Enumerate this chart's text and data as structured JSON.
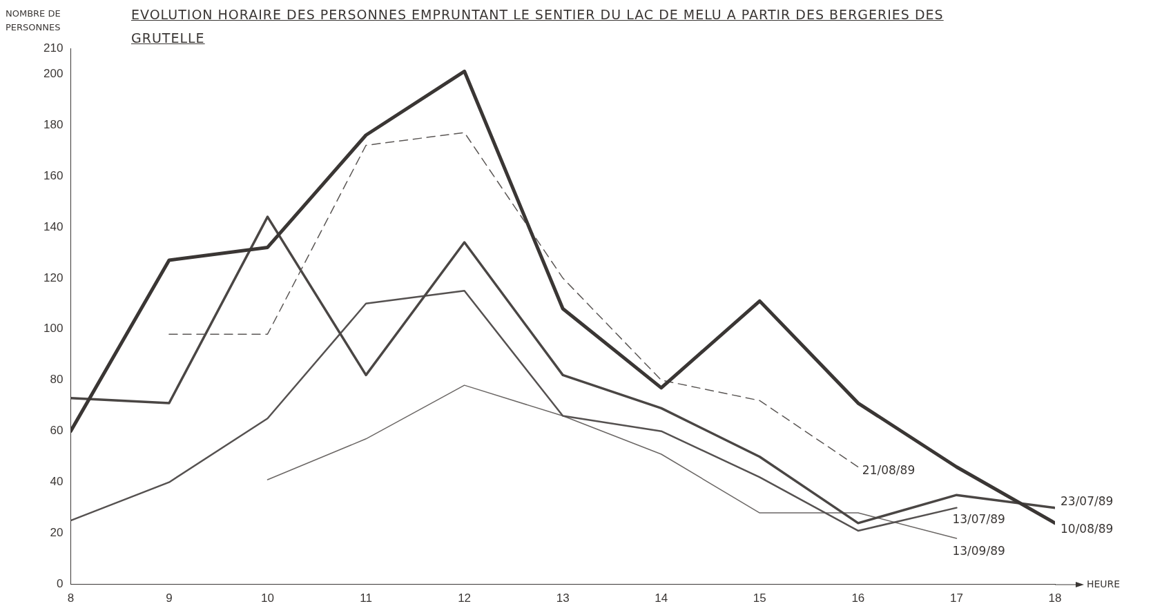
{
  "chart_data": {
    "type": "line",
    "title": "EVOLUTION HORAIRE DES PERSONNES EMPRUNTANT LE SENTIER DU LAC DE MELU A PARTIR DES BERGERIES DES GRUTELLE",
    "xlabel": "HEURE",
    "ylabel": "NOMBRE DE PERSONNES",
    "xlim": [
      8,
      18
    ],
    "xticks": [
      8,
      9,
      10,
      11,
      12,
      13,
      14,
      15,
      16,
      17,
      18
    ],
    "ylim": [
      0,
      210
    ],
    "yticks": [
      0,
      20,
      40,
      60,
      80,
      100,
      120,
      140,
      160,
      180,
      200,
      210
    ],
    "grid": false,
    "legend": false,
    "marker": "none",
    "series": [
      {
        "name": "10/08/89",
        "color": "#3a3634",
        "x": [
          8,
          9,
          10,
          11,
          12,
          13,
          14,
          15,
          16,
          17,
          18
        ],
        "values": [
          60,
          127,
          132,
          176,
          201,
          108,
          77,
          111,
          71,
          46,
          24
        ]
      },
      {
        "name": "21/08/89",
        "color": "#5a5654",
        "line_style": "dashed",
        "x": [
          9,
          10,
          11,
          12,
          13,
          14,
          15,
          16
        ],
        "values": [
          98,
          98,
          172,
          177,
          120,
          80,
          72,
          46
        ]
      },
      {
        "name": "23/07/89",
        "color": "#4a4644",
        "x": [
          8,
          9,
          10,
          11,
          12,
          13,
          14,
          15,
          16,
          17,
          18
        ],
        "values": [
          73,
          71,
          144,
          82,
          134,
          82,
          69,
          50,
          24,
          35,
          30
        ]
      },
      {
        "name": "13/07/89",
        "color": "#555150",
        "x": [
          8,
          9,
          10,
          11,
          12,
          13,
          14,
          15,
          16,
          17
        ],
        "values": [
          25,
          40,
          65,
          110,
          115,
          66,
          60,
          42,
          21,
          30
        ]
      },
      {
        "name": "13/09/89",
        "color": "#6a6664",
        "x": [
          10,
          11,
          12,
          13,
          14,
          15,
          16,
          17
        ],
        "values": [
          41,
          57,
          78,
          66,
          51,
          28,
          28,
          18
        ]
      }
    ]
  }
}
